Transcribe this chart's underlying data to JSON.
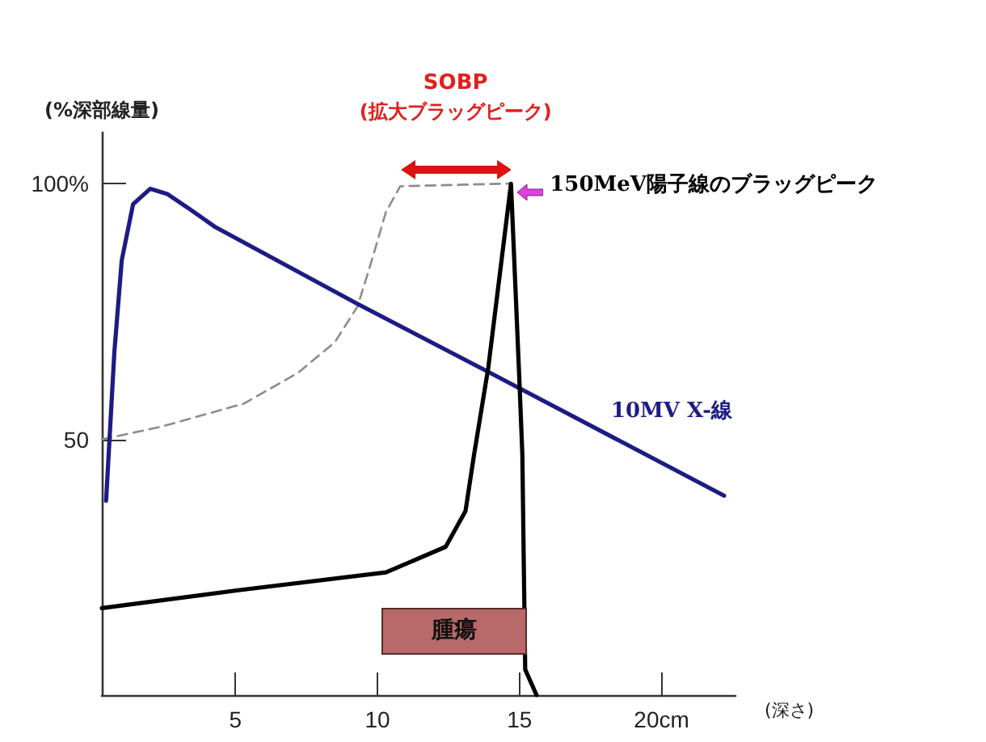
{
  "chart_data": {
    "type": "line",
    "xlabel": "(深さ)",
    "ylabel": "(%深部線量)",
    "xlim": [
      0.3,
      22.6
    ],
    "ylim": [
      0,
      110
    ],
    "xticks": [
      5,
      10,
      {
        "value": 15,
        "label": "15"
      },
      {
        "value": 20,
        "label": "20cm"
      }
    ],
    "yticks": [
      50,
      {
        "value": 100,
        "label": "100%"
      }
    ],
    "grid": false,
    "marker": "none",
    "series": [
      {
        "name": "10MV X-線",
        "color": "#1c1c84",
        "line_style": "solid",
        "x": [
          0.45,
          0.74,
          1.0,
          1.4,
          2.0,
          2.6,
          3.4,
          4.3,
          9.3,
          13.8,
          22.2
        ],
        "values": [
          38,
          67,
          85,
          96,
          99,
          98,
          95,
          91.5,
          76.5,
          63.5,
          39
        ]
      },
      {
        "name": "150MeV陽子線のブラッグピーク",
        "color": "#000000",
        "line_style": "solid",
        "x": [
          0.3,
          5.1,
          10.3,
          12.4,
          13.1,
          13.4,
          13.9,
          14.7,
          15.0,
          15.1,
          15.2,
          15.6
        ],
        "values": [
          17,
          20.5,
          24,
          29,
          36,
          47,
          64,
          100,
          61,
          47,
          5,
          0
        ]
      },
      {
        "color": "#8c8c8c",
        "line_style": "dashed",
        "x": [
          0.3,
          2.4,
          5.3,
          7.2,
          8.5,
          9.3,
          9.8,
          10.3,
          10.8,
          14.4,
          14.7
        ],
        "values": [
          50,
          52.5,
          57,
          63,
          69,
          76,
          85,
          94.5,
          99.5,
          100,
          100
        ]
      }
    ],
    "annotations": [
      "SOBP",
      "(拡大ブラッグピーク)",
      "腫瘍"
    ]
  }
}
